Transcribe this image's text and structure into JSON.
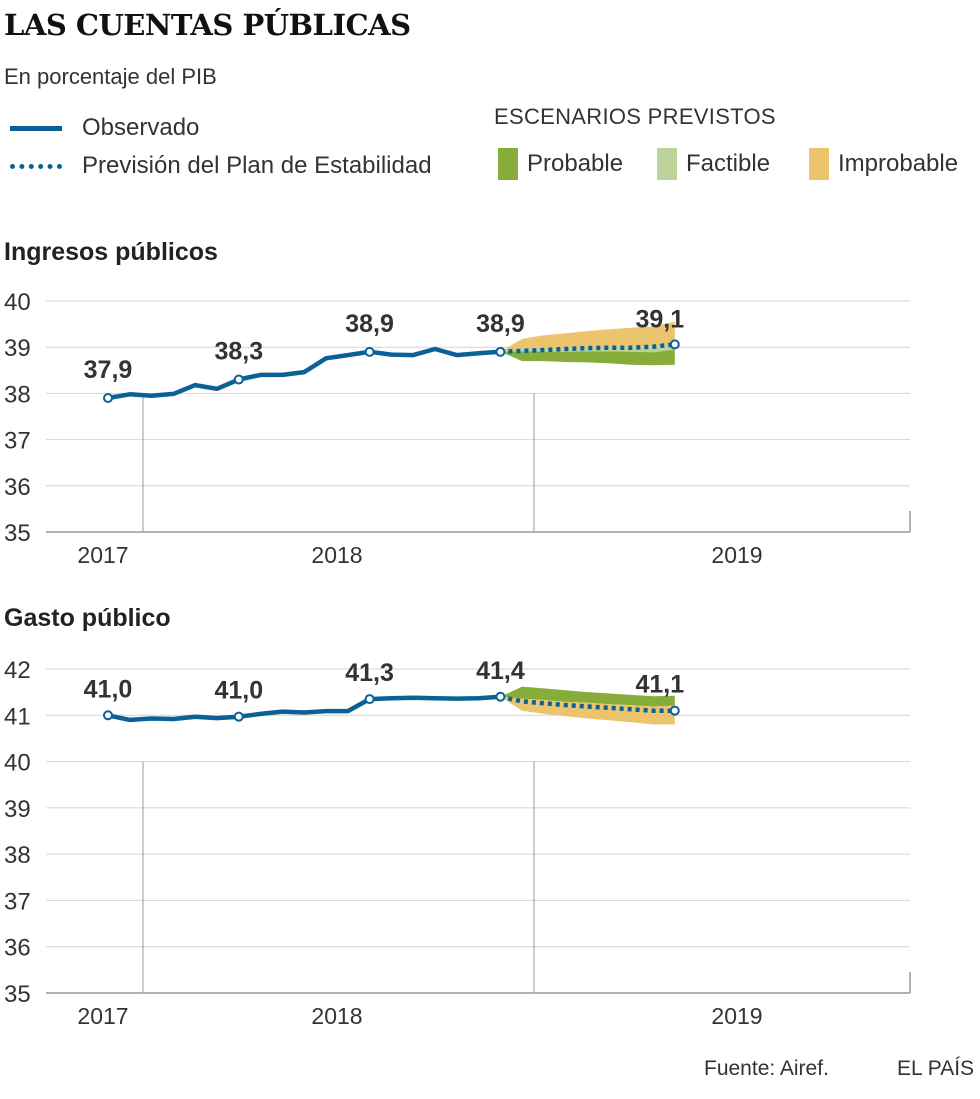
{
  "title": "LAS CUENTAS PÚBLICAS",
  "subtitle": "En porcentaje del PIB",
  "legend": {
    "observed": "Observado",
    "forecast": "Previsión del Plan de Estabilidad",
    "scenarios_title": "ESCENARIOS PREVISTOS",
    "probable": "Probable",
    "factible": "Factible",
    "improbable": "Improbable"
  },
  "colors": {
    "line": "#0b6196",
    "probable": "#86ad3a",
    "factible": "#bcd39a",
    "improbable": "#ecc46e",
    "grid": "#d4d4d4",
    "axis": "#999999"
  },
  "source": "Fuente: Airef.",
  "brand": "EL PAÍS",
  "chart_data": [
    {
      "type": "line",
      "title": "Ingresos públicos",
      "ylim": [
        35,
        40
      ],
      "yticks": [
        35,
        36,
        37,
        38,
        39,
        40
      ],
      "xlabels": [
        "2017",
        "2018",
        "2019"
      ],
      "observed": [
        37.9,
        37.98,
        37.95,
        37.99,
        38.18,
        38.1,
        38.3,
        38.4,
        38.4,
        38.46,
        38.76,
        38.83,
        38.9,
        38.84,
        38.83,
        38.96,
        38.83,
        38.87,
        38.9
      ],
      "forecast": [
        38.9,
        38.92,
        38.94,
        38.96,
        38.98,
        38.99,
        38.99,
        39.01,
        39.06
      ],
      "scenario_upper": [
        38.9,
        39.18,
        39.26,
        39.3,
        39.35,
        39.39,
        39.42,
        39.45,
        39.55
      ],
      "factible_upper": [
        38.9,
        38.99,
        38.99,
        39.0,
        39.0,
        39.01,
        39.01,
        39.01,
        39.06
      ],
      "probable_upper": [
        38.9,
        38.91,
        38.9,
        38.9,
        38.91,
        38.91,
        38.9,
        38.89,
        38.95
      ],
      "scenario_lower": [
        38.9,
        38.7,
        38.7,
        38.68,
        38.67,
        38.65,
        38.62,
        38.61,
        38.62
      ],
      "labels": [
        {
          "index": 0,
          "text": "37,9"
        },
        {
          "index": 6,
          "text": "38,3"
        },
        {
          "index": 12,
          "text": "38,9"
        },
        {
          "index": 18,
          "text": "38,9"
        },
        {
          "index": 26,
          "text": "39,1"
        }
      ]
    },
    {
      "type": "line",
      "title": "Gasto público",
      "ylim": [
        35,
        42
      ],
      "yticks": [
        35,
        36,
        37,
        38,
        39,
        40,
        41,
        42
      ],
      "xlabels": [
        "2017",
        "2018",
        "2019"
      ],
      "observed": [
        41.0,
        40.9,
        40.93,
        40.92,
        40.97,
        40.94,
        40.97,
        41.03,
        41.08,
        41.06,
        41.09,
        41.09,
        41.35,
        41.37,
        41.38,
        41.37,
        41.36,
        41.37,
        41.4
      ],
      "forecast": [
        41.4,
        41.3,
        41.26,
        41.22,
        41.19,
        41.16,
        41.13,
        41.1,
        41.1
      ],
      "scenario_upper": [
        41.4,
        41.62,
        41.58,
        41.54,
        41.5,
        41.47,
        41.44,
        41.41,
        41.42
      ],
      "factible_upper": [
        41.4,
        41.36,
        41.33,
        41.29,
        41.27,
        41.24,
        41.22,
        41.19,
        41.21
      ],
      "probable_upper": [
        41.4,
        41.36,
        41.33,
        41.29,
        41.27,
        41.24,
        41.22,
        41.19,
        41.21
      ],
      "scenario_lower": [
        41.4,
        41.1,
        41.03,
        40.98,
        40.93,
        40.89,
        40.85,
        40.8,
        40.8
      ],
      "labels": [
        {
          "index": 0,
          "text": "41,0"
        },
        {
          "index": 6,
          "text": "41,0"
        },
        {
          "index": 12,
          "text": "41,3"
        },
        {
          "index": 18,
          "text": "41,4"
        },
        {
          "index": 26,
          "text": "41,1"
        }
      ]
    }
  ]
}
